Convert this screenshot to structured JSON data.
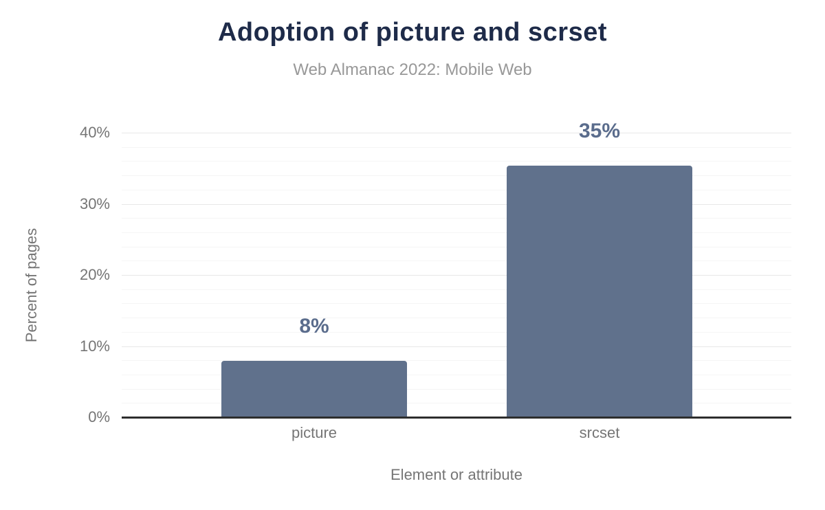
{
  "chart_data": {
    "type": "bar",
    "title": "Adoption of picture and scrset",
    "subtitle": "Web Almanac 2022: Mobile Web",
    "xlabel": "Element or attribute",
    "ylabel": "Percent of pages",
    "categories": [
      "picture",
      "srcset"
    ],
    "values": [
      7.9,
      35.4
    ],
    "value_labels": [
      "8%",
      "35%"
    ],
    "ylim": [
      0,
      40
    ],
    "ytick_step": 10,
    "minor_grid_step": 2,
    "ytick_labels": [
      "0%",
      "10%",
      "20%",
      "30%",
      "40%"
    ],
    "grid": true,
    "legend": "none",
    "colors": {
      "bar": "#60718c",
      "value_label": "#5a6c8c",
      "title": "#1e2b49",
      "subtitle": "#989898",
      "axis_text": "#757575",
      "axis_line": "#2d2d2d",
      "grid_major": "#e7e7e7",
      "grid_minor": "#f5f5f5",
      "background": "#ffffff"
    }
  }
}
